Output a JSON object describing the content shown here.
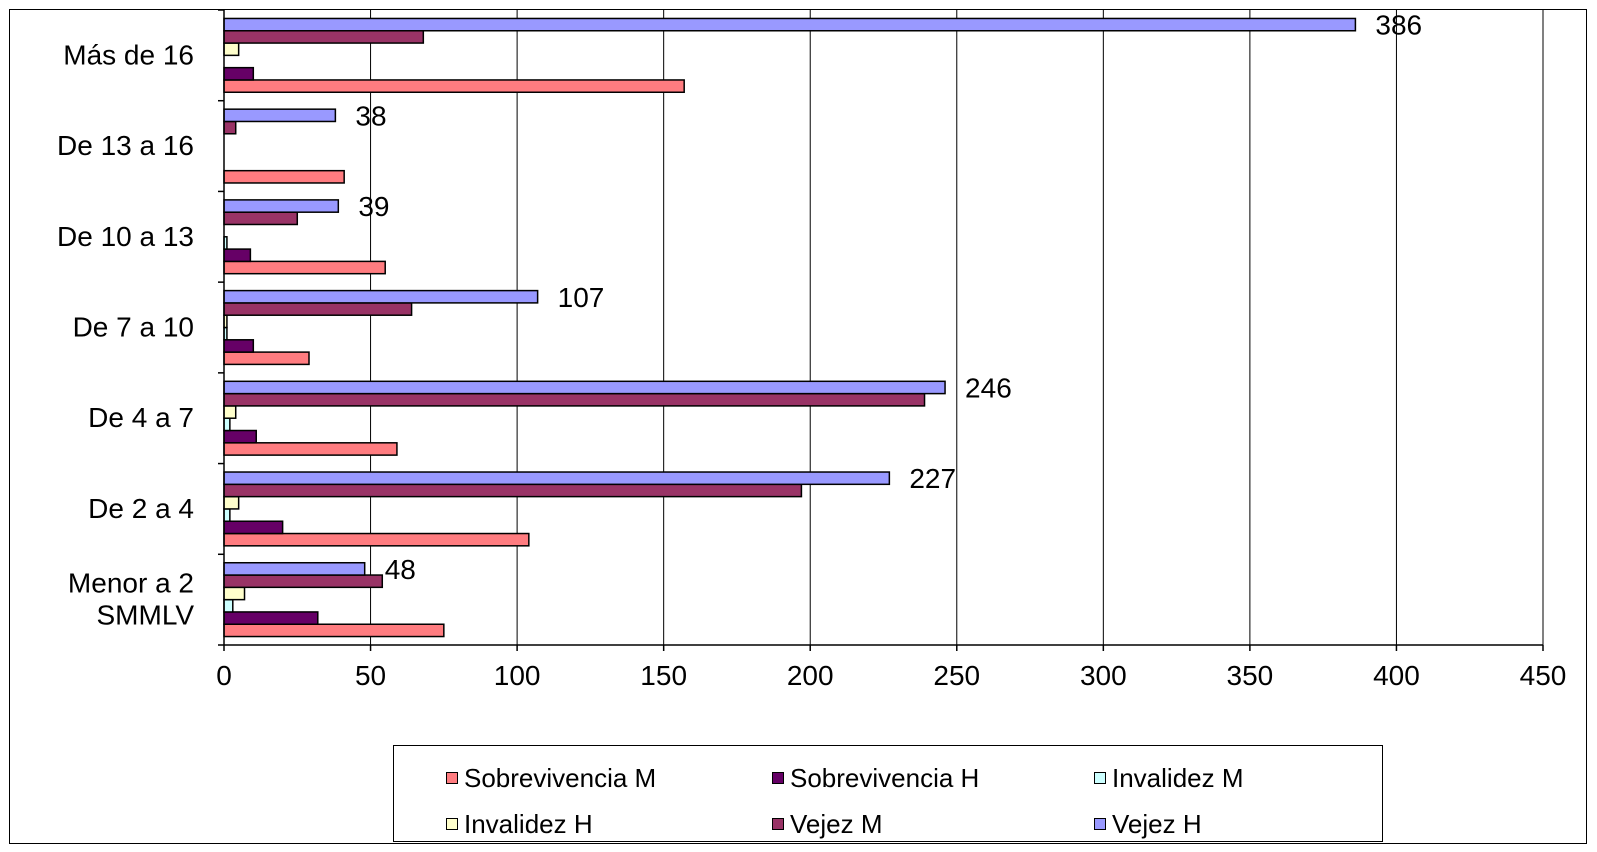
{
  "chart_data": {
    "type": "bar",
    "orientation": "horizontal",
    "categories": [
      "Menor a 2 SMMLV",
      "De 2 a 4",
      "De 4 a 7",
      "De 7 a 10",
      "De 10 a 13",
      "De 13 a 16",
      "Más de 16"
    ],
    "category_lines": [
      [
        "Menor a 2",
        "SMMLV"
      ],
      [
        "De 2 a 4"
      ],
      [
        "De 4 a 7"
      ],
      [
        "De 7 a 10"
      ],
      [
        "De 10 a 13"
      ],
      [
        "De 13 a 16"
      ],
      [
        "Más de 16"
      ]
    ],
    "series": [
      {
        "name": "Sobrevivencia M",
        "color": "#FF7C80",
        "values": [
          75,
          104,
          59,
          29,
          55,
          41,
          157
        ]
      },
      {
        "name": "Sobrevivencia H",
        "color": "#660066",
        "values": [
          32,
          20,
          11,
          10,
          9,
          0,
          10
        ]
      },
      {
        "name": "Invalidez M",
        "color": "#CCFFFF",
        "values": [
          3,
          2,
          2,
          1,
          1,
          0,
          0
        ]
      },
      {
        "name": "Invalidez H",
        "color": "#FFFFCC",
        "values": [
          7,
          5,
          4,
          1,
          0,
          0,
          5
        ]
      },
      {
        "name": "Vejez M",
        "color": "#993366",
        "values": [
          54,
          197,
          239,
          64,
          25,
          4,
          68
        ]
      },
      {
        "name": "Vejez H",
        "color": "#9999FF",
        "values": [
          48,
          227,
          246,
          107,
          39,
          38,
          386
        ]
      }
    ],
    "data_labels": {
      "series": "Vejez H",
      "values": [
        "48",
        "227",
        "246",
        "107",
        "39",
        "38",
        "386"
      ]
    },
    "x_ticks": [
      "0",
      "50",
      "100",
      "150",
      "200",
      "250",
      "300",
      "350",
      "400",
      "450"
    ],
    "xlim": [
      0,
      450
    ],
    "title": "",
    "xlabel": "",
    "ylabel": "",
    "grid": "vertical",
    "legend_position": "bottom"
  }
}
